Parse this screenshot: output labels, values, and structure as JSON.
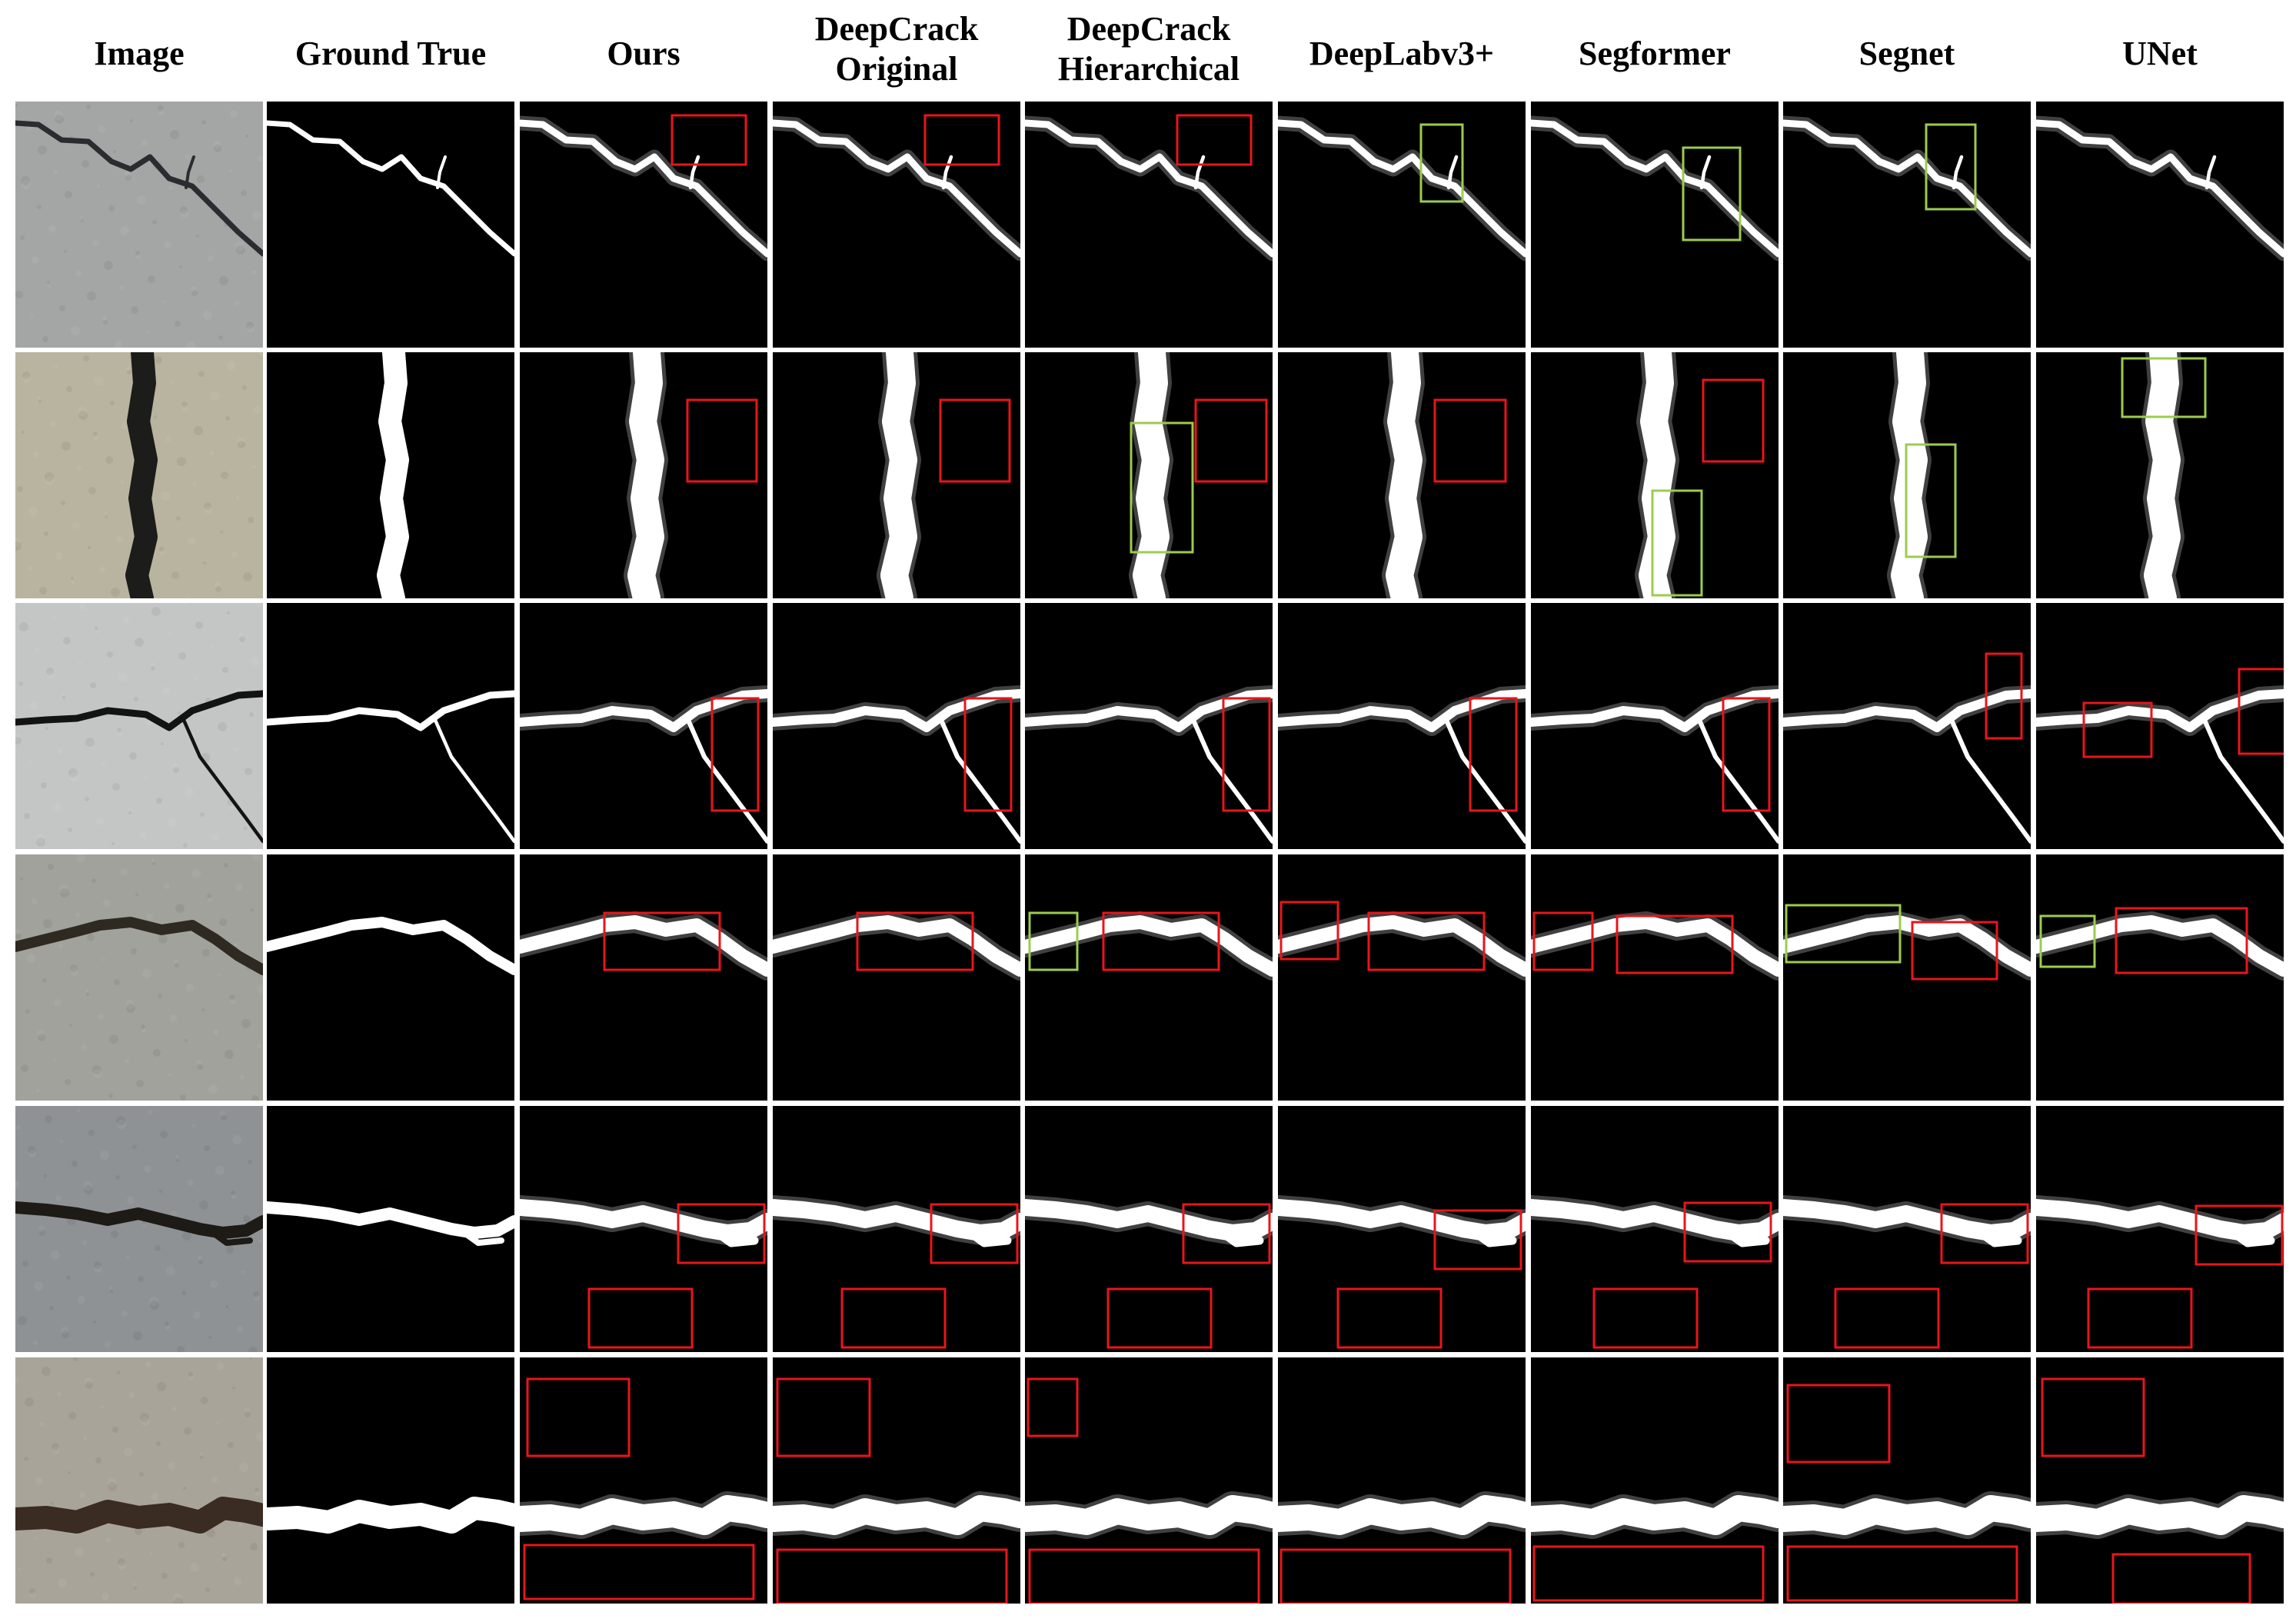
{
  "columns": [
    {
      "label": "Image"
    },
    {
      "label": "Ground True"
    },
    {
      "label": "Ours"
    },
    {
      "label": "DeepCrack\nOriginal"
    },
    {
      "label": "DeepCrack\nHierarchical"
    },
    {
      "label": "DeepLabv3+"
    },
    {
      "label": "Segformer"
    },
    {
      "label": "Segnet"
    },
    {
      "label": "UNet"
    }
  ],
  "colors": {
    "error_box": "#e8151b",
    "miss_box": "#9ccc4f",
    "crack": "#ffffff",
    "background": "#000000"
  },
  "rows": [
    {
      "photo": "#a4a6a6",
      "crack_stroke": "#2b2c2f"
    },
    {
      "photo": "#b8b49f",
      "crack_stroke": "#1c1c1a"
    },
    {
      "photo": "#c4c6c6",
      "crack_stroke": "#131313"
    },
    {
      "photo": "#a2a29c",
      "crack_stroke": "#2e2a22"
    },
    {
      "photo": "#8e9294",
      "crack_stroke": "#1e1a16"
    },
    {
      "photo": "#a8a49a",
      "crack_stroke": "#3a2c22"
    }
  ]
}
